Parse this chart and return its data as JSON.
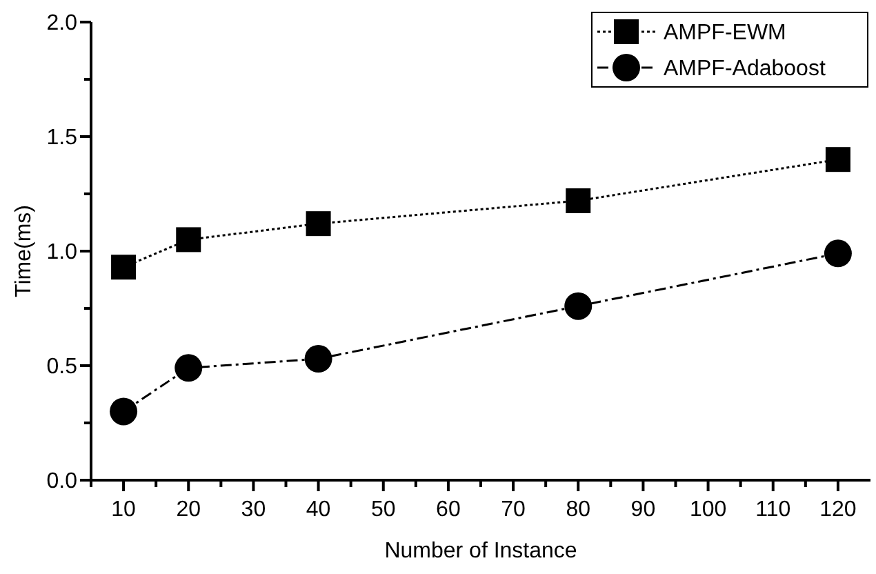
{
  "chart_data": {
    "type": "line",
    "xlabel": "Number of Instance",
    "ylabel": "Time(ms)",
    "x": [
      10,
      20,
      40,
      80,
      120
    ],
    "series": [
      {
        "name": "AMPF-EWM",
        "color": "#000000",
        "marker": "square",
        "line_style": "dotted",
        "values": [
          0.93,
          1.05,
          1.12,
          1.22,
          1.4
        ]
      },
      {
        "name": "AMPF-Adaboost",
        "color": "#000000",
        "marker": "circle",
        "line_style": "dashed",
        "values": [
          0.3,
          0.49,
          0.53,
          0.76,
          0.99
        ]
      }
    ],
    "xlim": [
      5,
      125
    ],
    "xticks": [
      {
        "value": 5,
        "label": null
      },
      10,
      {
        "value": 15,
        "label": null
      },
      20,
      {
        "value": 25,
        "label": null
      },
      30,
      {
        "value": 35,
        "label": null
      },
      40,
      {
        "value": 45,
        "label": null
      },
      50,
      {
        "value": 55,
        "label": null
      },
      60,
      {
        "value": 65,
        "label": null
      },
      70,
      {
        "value": 75,
        "label": null
      },
      80,
      {
        "value": 85,
        "label": null
      },
      90,
      {
        "value": 95,
        "label": null
      },
      100,
      {
        "value": 105,
        "label": null
      },
      110,
      {
        "value": 115,
        "label": null
      },
      120
    ],
    "ylim": [
      0,
      2
    ],
    "yticks": [
      {
        "value": 0,
        "label": "0.0"
      },
      {
        "value": 0.25,
        "label": null
      },
      {
        "value": 0.5,
        "label": "0.5"
      },
      {
        "value": 0.75,
        "label": null
      },
      {
        "value": 1,
        "label": "1.0"
      },
      {
        "value": 1.25,
        "label": null
      },
      {
        "value": 1.5,
        "label": "1.5"
      },
      {
        "value": 1.75,
        "label": null
      },
      {
        "value": 2,
        "label": "2.0"
      }
    ],
    "legend": "top right",
    "grid": false
  }
}
